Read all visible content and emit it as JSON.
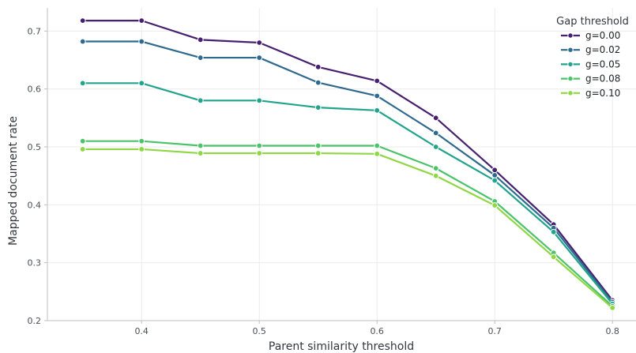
{
  "chart_data": {
    "type": "line",
    "title": "",
    "xlabel": "Parent similarity threshold",
    "ylabel": "Mapped document rate",
    "x": [
      0.35,
      0.4,
      0.45,
      0.5,
      0.55,
      0.6,
      0.65,
      0.7,
      0.75,
      0.8
    ],
    "xlim": [
      0.32,
      0.82
    ],
    "ylim": [
      0.2,
      0.74
    ],
    "xticks": [
      "0.4",
      "0.5",
      "0.6",
      "0.7",
      "0.8"
    ],
    "yticks": [
      "0.2",
      "0.3",
      "0.4",
      "0.5",
      "0.6",
      "0.7"
    ],
    "grid": true,
    "legend": {
      "title": "Gap threshold",
      "placement": "top-right"
    },
    "series": [
      {
        "name": "g=0.00",
        "color": "#46206f",
        "values": [
          0.718,
          0.718,
          0.685,
          0.68,
          0.638,
          0.614,
          0.55,
          0.46,
          0.366,
          0.235
        ]
      },
      {
        "name": "g=0.02",
        "color": "#2e6a8e",
        "values": [
          0.682,
          0.682,
          0.654,
          0.654,
          0.611,
          0.588,
          0.524,
          0.451,
          0.36,
          0.232
        ]
      },
      {
        "name": "g=0.05",
        "color": "#22a38b",
        "values": [
          0.61,
          0.61,
          0.58,
          0.58,
          0.568,
          0.563,
          0.5,
          0.442,
          0.353,
          0.229
        ]
      },
      {
        "name": "g=0.08",
        "color": "#4cc36a",
        "values": [
          0.51,
          0.51,
          0.502,
          0.502,
          0.502,
          0.502,
          0.463,
          0.406,
          0.317,
          0.225
        ]
      },
      {
        "name": "g=0.10",
        "color": "#8fd744",
        "values": [
          0.496,
          0.496,
          0.489,
          0.489,
          0.489,
          0.488,
          0.45,
          0.399,
          0.31,
          0.222
        ]
      }
    ]
  }
}
